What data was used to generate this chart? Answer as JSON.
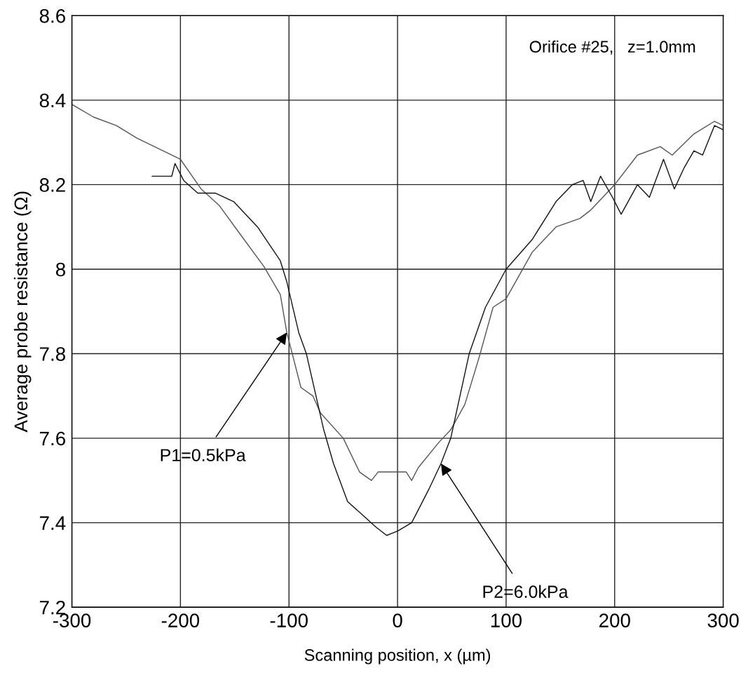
{
  "chart_data": {
    "type": "line",
    "xlabel": "Scanning position, x (µm)",
    "ylabel": "Average probe resistance (Ω)",
    "xlim": [
      -300,
      300
    ],
    "xticks": [
      -300,
      -200,
      -100,
      0,
      100,
      200,
      300
    ],
    "ylim": [
      7.2,
      8.6
    ],
    "yticks": [
      7.2,
      7.4,
      7.6,
      7.8,
      8,
      8.2,
      8.4,
      8.6
    ],
    "grid": true,
    "marker": "none",
    "line_style": "solid",
    "series": [
      {
        "color": "#555555",
        "x": [
          -300,
          -280,
          -259,
          -240,
          -216,
          -200,
          -181,
          -164,
          -147,
          -123,
          -108,
          -102,
          -89,
          -78,
          -71,
          -50,
          -35,
          -24,
          -18,
          0,
          8,
          13,
          19,
          38,
          49,
          62,
          75,
          88,
          100,
          124,
          146,
          168,
          178,
          200,
          221,
          242,
          253,
          273,
          292,
          300
        ],
        "values": [
          8.39,
          8.36,
          8.34,
          8.31,
          8.28,
          8.26,
          8.19,
          8.15,
          8.09,
          8.006,
          7.94,
          7.85,
          7.72,
          7.7,
          7.66,
          7.6,
          7.52,
          7.5,
          7.52,
          7.52,
          7.52,
          7.5,
          7.53,
          7.59,
          7.62,
          7.68,
          7.79,
          7.91,
          7.93,
          8.04,
          8.1,
          8.12,
          8.14,
          8.2,
          8.27,
          8.29,
          8.27,
          8.32,
          8.35,
          8.34
        ]
      },
      {
        "color": "#111111",
        "x": [
          -226,
          -208,
          -205,
          -197,
          -184,
          -168,
          -151,
          -129,
          -108,
          -102,
          -91,
          -84,
          -76,
          -68,
          -59,
          -46,
          -33,
          -20,
          -10,
          0,
          13,
          19,
          29,
          40,
          49,
          66,
          81,
          100,
          124,
          146,
          161,
          171,
          178,
          187,
          198,
          206,
          221,
          232,
          245,
          255,
          264,
          273,
          281,
          292,
          300
        ],
        "values": [
          8.22,
          8.22,
          8.25,
          8.21,
          8.18,
          8.18,
          8.16,
          8.1,
          8.02,
          7.97,
          7.85,
          7.8,
          7.71,
          7.62,
          7.54,
          7.45,
          7.42,
          7.39,
          7.37,
          7.38,
          7.4,
          7.43,
          7.48,
          7.54,
          7.6,
          7.8,
          7.91,
          8.0,
          8.07,
          8.16,
          8.2,
          8.21,
          8.16,
          8.22,
          8.17,
          8.13,
          8.2,
          8.17,
          8.26,
          8.19,
          8.24,
          8.28,
          8.27,
          8.34,
          8.33
        ]
      }
    ],
    "annotations": [
      "Orifice #25,   z=1.0mm",
      {
        "text": "P1=0.5kPa",
        "x": -102,
        "y": 7.85
      },
      {
        "text": "P2=6.0kPa",
        "x": 40,
        "y": 7.54
      }
    ]
  }
}
